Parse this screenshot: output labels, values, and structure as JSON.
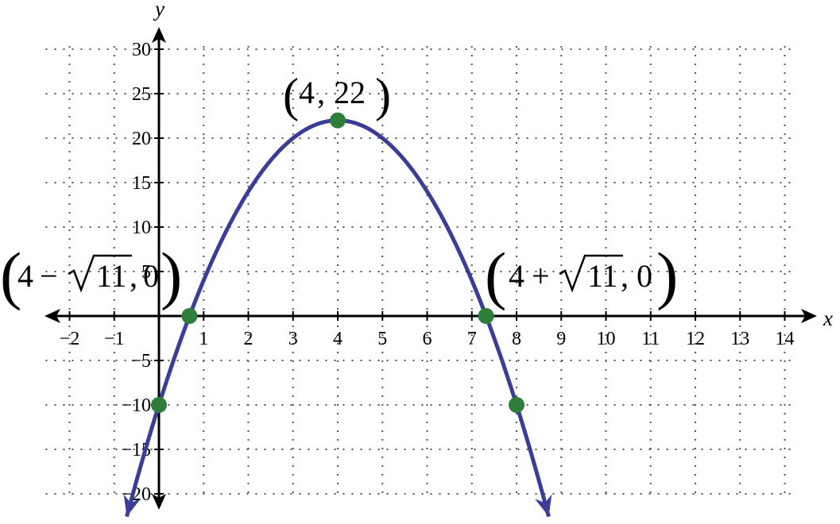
{
  "chart_data": {
    "type": "line",
    "function": "y = -2(x-4)^2 + 22",
    "xlabel": "x",
    "ylabel": "y",
    "xlim": [
      -2,
      14
    ],
    "ylim": [
      -20,
      30
    ],
    "grid": true,
    "x_ticks": [
      -2,
      -1,
      1,
      2,
      3,
      4,
      5,
      6,
      7,
      8,
      9,
      10,
      11,
      12,
      13,
      14
    ],
    "x_tick_labels": [
      "−2",
      "−1",
      "1",
      "2",
      "3",
      "4",
      "5",
      "6",
      "7",
      "8",
      "9",
      "10",
      "11",
      "12",
      "13",
      "14"
    ],
    "y_ticks": [
      30,
      25,
      20,
      15,
      10,
      5,
      -5,
      -10,
      -15,
      -20
    ],
    "y_tick_labels": [
      "30",
      "25",
      "20",
      "15",
      "10",
      "5",
      "−5",
      "−10",
      "−15",
      "−20"
    ],
    "series": [
      {
        "color": "#3b3d97",
        "x": [
          -0.72,
          0,
          0.68,
          2,
          4,
          6,
          7.32,
          8,
          8.72
        ],
        "y": [
          -22.6,
          -10,
          0,
          14,
          22,
          14,
          0,
          -10,
          -22.6
        ]
      }
    ],
    "points": [
      {
        "x": 4,
        "y": 22,
        "label": "(4, 22)",
        "label_parts": [
          "4",
          "22"
        ]
      },
      {
        "x": 0.683,
        "y": 0,
        "label": "(4 − √11, 0)",
        "label_parts": [
          "4",
          "−",
          "11",
          "0"
        ]
      },
      {
        "x": 7.317,
        "y": 0,
        "label": "(4 + √11, 0)",
        "label_parts": [
          "4",
          "+",
          "11",
          "0"
        ]
      },
      {
        "x": 0,
        "y": -10,
        "label": ""
      },
      {
        "x": 8,
        "y": -10,
        "label": ""
      }
    ],
    "point_color": "#2e7d3a"
  }
}
